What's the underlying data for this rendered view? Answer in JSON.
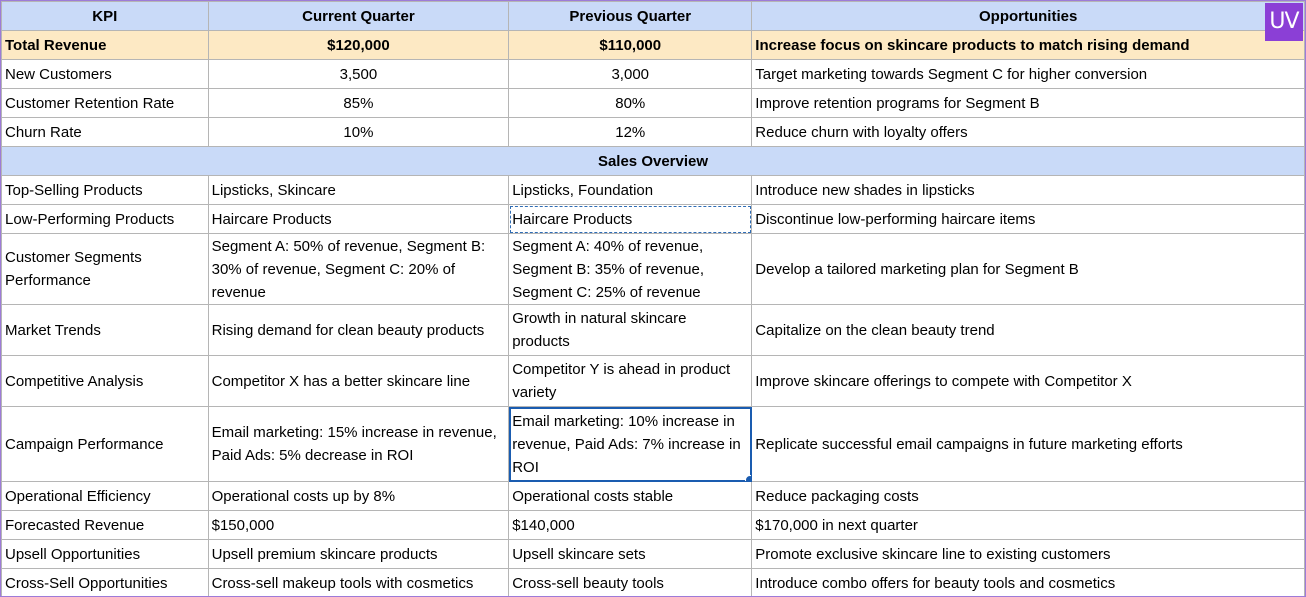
{
  "brand": {
    "logo_text": "UV",
    "logo_color": "#8b3fd6"
  },
  "colors": {
    "header_bg": "#c9daf8",
    "highlight_bg": "#fde9c4",
    "selection": "#1a5cb0"
  },
  "headers": [
    "KPI",
    "Current Quarter",
    "Previous Quarter",
    "Opportunities"
  ],
  "kpi_rows": [
    [
      "Total Revenue",
      "$120,000",
      "$110,000",
      "Increase focus on skincare products to match rising demand"
    ],
    [
      "New Customers",
      "3,500",
      "3,000",
      "Target marketing towards Segment C for higher conversion"
    ],
    [
      "Customer Retention Rate",
      "85%",
      "80%",
      "Improve retention programs for Segment B"
    ],
    [
      "Churn Rate",
      "10%",
      "12%",
      "Reduce churn with loyalty offers"
    ]
  ],
  "section_title": "Sales Overview",
  "sales_rows": [
    [
      "Top-Selling Products",
      "Lipsticks, Skincare",
      "Lipsticks, Foundation",
      "Introduce new shades in lipsticks"
    ],
    [
      "Low-Performing Products",
      "Haircare Products",
      "Haircare Products",
      "Discontinue low-performing haircare items"
    ],
    [
      "Customer Segments Performance",
      "Segment A: 50% of revenue, Segment B: 30% of revenue, Segment C: 20% of revenue",
      "Segment A: 40% of revenue, Segment B: 35% of revenue, Segment C: 25% of revenue",
      "Develop a tailored marketing plan for Segment B"
    ],
    [
      "Market Trends",
      "Rising demand for clean beauty products",
      "Growth in natural skincare products",
      "Capitalize on the clean beauty trend"
    ],
    [
      "Competitive Analysis",
      "Competitor X has a better skincare line",
      "Competitor Y is ahead in product variety",
      "Improve skincare offerings to compete with Competitor X"
    ],
    [
      "Campaign Performance",
      "Email marketing: 15% increase in revenue, Paid Ads: 5% decrease in ROI",
      "Email marketing: 10% increase in revenue, Paid Ads: 7% increase in ROI",
      "Replicate successful email campaigns in future marketing efforts"
    ],
    [
      "Operational Efficiency",
      "Operational costs up by 8%",
      "Operational costs stable",
      "Reduce packaging costs"
    ],
    [
      "Forecasted Revenue",
      "$150,000",
      "$140,000",
      "$170,000 in next quarter"
    ],
    [
      "Upsell Opportunities",
      "Upsell premium skincare products",
      "Upsell skincare sets",
      "Promote exclusive skincare line to existing customers"
    ],
    [
      "Cross-Sell Opportunities",
      "Cross-sell makeup tools with cosmetics",
      "Cross-sell beauty tools",
      "Introduce combo offers for beauty tools and cosmetics"
    ]
  ]
}
